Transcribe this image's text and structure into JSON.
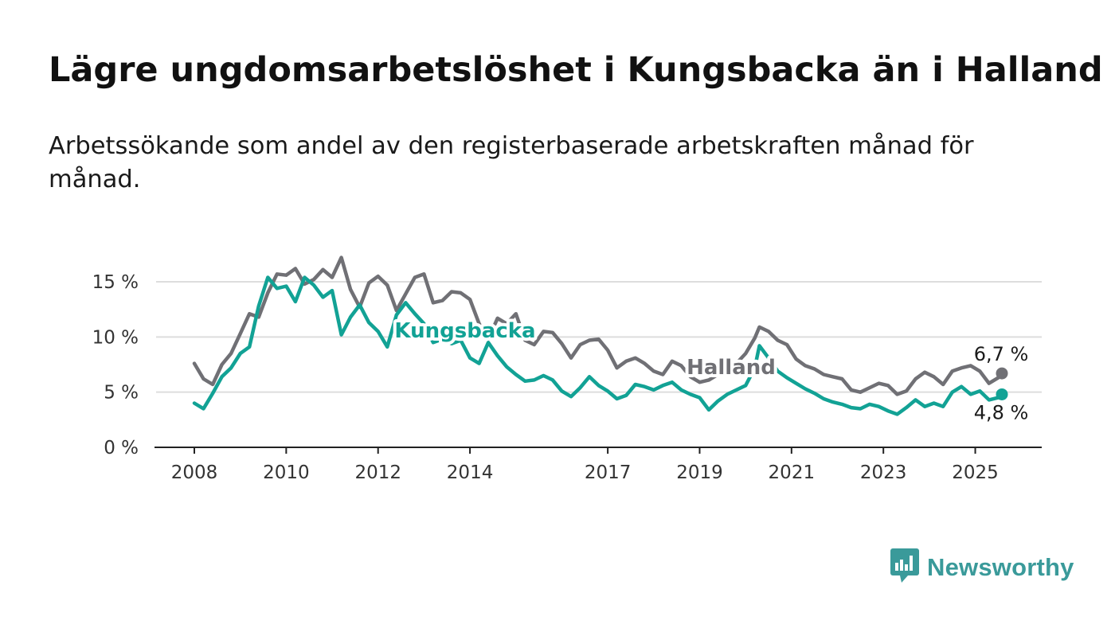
{
  "title": "Lägre ungdomsarbetslöshet i Kungsbacka än i Halland",
  "subtitle": "Arbetssökande som andel av den registerbaserade arbetskraften månad för månad.",
  "brand": {
    "name": "Newsworthy",
    "icon": "newsworthy-logo-icon",
    "color": "#3a9a9a"
  },
  "chart_data": {
    "type": "line",
    "title": "",
    "xlabel": "",
    "ylabel": "",
    "x_range": [
      2008.0,
      2025.58
    ],
    "ylim": [
      0,
      15
    ],
    "y_ticks": [
      {
        "value": 0,
        "label": "0 %"
      },
      {
        "value": 5,
        "label": "5 %"
      },
      {
        "value": 10,
        "label": "10 %"
      },
      {
        "value": 15,
        "label": "15 %"
      }
    ],
    "x_ticks": [
      {
        "value": 2008,
        "label": "2008"
      },
      {
        "value": 2010,
        "label": "2010"
      },
      {
        "value": 2012,
        "label": "2012"
      },
      {
        "value": 2014,
        "label": "2014"
      },
      {
        "value": 2017,
        "label": "2017"
      },
      {
        "value": 2019,
        "label": "2019"
      },
      {
        "value": 2021,
        "label": "2021"
      },
      {
        "value": 2023,
        "label": "2023"
      },
      {
        "value": 2025,
        "label": "2025"
      }
    ],
    "grid": true,
    "legend": "direct labels",
    "series": [
      {
        "name": "Halland",
        "color": "#707075",
        "end_label": "6,7 %",
        "points": [
          [
            2008.0,
            7.6
          ],
          [
            2008.2,
            6.2
          ],
          [
            2008.4,
            5.7
          ],
          [
            2008.6,
            7.5
          ],
          [
            2008.8,
            8.5
          ],
          [
            2009.0,
            10.3
          ],
          [
            2009.2,
            12.1
          ],
          [
            2009.4,
            11.8
          ],
          [
            2009.6,
            14.0
          ],
          [
            2009.8,
            15.7
          ],
          [
            2010.0,
            15.6
          ],
          [
            2010.2,
            16.2
          ],
          [
            2010.4,
            14.8
          ],
          [
            2010.6,
            15.2
          ],
          [
            2010.8,
            16.1
          ],
          [
            2011.0,
            15.4
          ],
          [
            2011.2,
            17.2
          ],
          [
            2011.4,
            14.3
          ],
          [
            2011.6,
            12.7
          ],
          [
            2011.8,
            14.9
          ],
          [
            2012.0,
            15.5
          ],
          [
            2012.2,
            14.7
          ],
          [
            2012.4,
            12.4
          ],
          [
            2012.6,
            13.9
          ],
          [
            2012.8,
            15.4
          ],
          [
            2013.0,
            15.7
          ],
          [
            2013.2,
            13.1
          ],
          [
            2013.4,
            13.3
          ],
          [
            2013.6,
            14.1
          ],
          [
            2013.8,
            14.0
          ],
          [
            2014.0,
            13.4
          ],
          [
            2014.2,
            11.2
          ],
          [
            2014.4,
            9.8
          ],
          [
            2014.6,
            11.7
          ],
          [
            2014.8,
            11.2
          ],
          [
            2015.0,
            12.1
          ],
          [
            2015.2,
            9.7
          ],
          [
            2015.4,
            9.3
          ],
          [
            2015.6,
            10.5
          ],
          [
            2015.8,
            10.4
          ],
          [
            2016.0,
            9.4
          ],
          [
            2016.2,
            8.1
          ],
          [
            2016.4,
            9.3
          ],
          [
            2016.6,
            9.7
          ],
          [
            2016.8,
            9.8
          ],
          [
            2017.0,
            8.8
          ],
          [
            2017.2,
            7.2
          ],
          [
            2017.4,
            7.8
          ],
          [
            2017.6,
            8.1
          ],
          [
            2017.8,
            7.6
          ],
          [
            2018.0,
            6.9
          ],
          [
            2018.2,
            6.6
          ],
          [
            2018.4,
            7.8
          ],
          [
            2018.6,
            7.4
          ],
          [
            2018.8,
            6.4
          ],
          [
            2019.0,
            5.9
          ],
          [
            2019.2,
            6.1
          ],
          [
            2019.4,
            6.6
          ],
          [
            2019.6,
            7.1
          ],
          [
            2019.8,
            7.6
          ],
          [
            2020.0,
            8.5
          ],
          [
            2020.2,
            9.9
          ],
          [
            2020.3,
            10.9
          ],
          [
            2020.5,
            10.5
          ],
          [
            2020.7,
            9.7
          ],
          [
            2020.9,
            9.3
          ],
          [
            2021.1,
            8.0
          ],
          [
            2021.3,
            7.4
          ],
          [
            2021.5,
            7.1
          ],
          [
            2021.7,
            6.6
          ],
          [
            2021.9,
            6.4
          ],
          [
            2022.1,
            6.2
          ],
          [
            2022.3,
            5.2
          ],
          [
            2022.5,
            5.0
          ],
          [
            2022.7,
            5.4
          ],
          [
            2022.9,
            5.8
          ],
          [
            2023.1,
            5.6
          ],
          [
            2023.3,
            4.8
          ],
          [
            2023.5,
            5.1
          ],
          [
            2023.7,
            6.2
          ],
          [
            2023.9,
            6.8
          ],
          [
            2024.1,
            6.4
          ],
          [
            2024.3,
            5.7
          ],
          [
            2024.5,
            6.9
          ],
          [
            2024.7,
            7.2
          ],
          [
            2024.9,
            7.4
          ],
          [
            2025.1,
            6.9
          ],
          [
            2025.3,
            5.8
          ],
          [
            2025.5,
            6.3
          ],
          [
            2025.58,
            6.7
          ]
        ]
      },
      {
        "name": "Kungsbacka",
        "color": "#12a295",
        "end_label": "4,8 %",
        "points": [
          [
            2008.0,
            4.0
          ],
          [
            2008.2,
            3.5
          ],
          [
            2008.4,
            4.9
          ],
          [
            2008.6,
            6.4
          ],
          [
            2008.8,
            7.2
          ],
          [
            2009.0,
            8.5
          ],
          [
            2009.2,
            9.1
          ],
          [
            2009.4,
            12.8
          ],
          [
            2009.6,
            15.4
          ],
          [
            2009.8,
            14.4
          ],
          [
            2010.0,
            14.6
          ],
          [
            2010.2,
            13.2
          ],
          [
            2010.4,
            15.4
          ],
          [
            2010.6,
            14.7
          ],
          [
            2010.8,
            13.6
          ],
          [
            2011.0,
            14.2
          ],
          [
            2011.2,
            10.2
          ],
          [
            2011.4,
            11.8
          ],
          [
            2011.6,
            12.9
          ],
          [
            2011.8,
            11.3
          ],
          [
            2012.0,
            10.5
          ],
          [
            2012.2,
            9.1
          ],
          [
            2012.4,
            12.0
          ],
          [
            2012.6,
            13.1
          ],
          [
            2012.8,
            12.1
          ],
          [
            2013.0,
            11.2
          ],
          [
            2013.2,
            9.5
          ],
          [
            2013.4,
            9.8
          ],
          [
            2013.6,
            9.4
          ],
          [
            2013.8,
            9.7
          ],
          [
            2014.0,
            8.1
          ],
          [
            2014.2,
            7.6
          ],
          [
            2014.4,
            9.5
          ],
          [
            2014.6,
            8.3
          ],
          [
            2014.8,
            7.3
          ],
          [
            2015.0,
            6.6
          ],
          [
            2015.2,
            6.0
          ],
          [
            2015.4,
            6.1
          ],
          [
            2015.6,
            6.5
          ],
          [
            2015.8,
            6.1
          ],
          [
            2016.0,
            5.1
          ],
          [
            2016.2,
            4.6
          ],
          [
            2016.4,
            5.4
          ],
          [
            2016.6,
            6.4
          ],
          [
            2016.8,
            5.6
          ],
          [
            2017.0,
            5.1
          ],
          [
            2017.2,
            4.4
          ],
          [
            2017.4,
            4.7
          ],
          [
            2017.6,
            5.7
          ],
          [
            2017.8,
            5.5
          ],
          [
            2018.0,
            5.2
          ],
          [
            2018.2,
            5.6
          ],
          [
            2018.4,
            5.9
          ],
          [
            2018.6,
            5.2
          ],
          [
            2018.8,
            4.8
          ],
          [
            2019.0,
            4.5
          ],
          [
            2019.2,
            3.4
          ],
          [
            2019.4,
            4.2
          ],
          [
            2019.6,
            4.8
          ],
          [
            2019.8,
            5.2
          ],
          [
            2020.0,
            5.6
          ],
          [
            2020.2,
            7.2
          ],
          [
            2020.3,
            9.2
          ],
          [
            2020.5,
            8.1
          ],
          [
            2020.7,
            6.9
          ],
          [
            2020.9,
            6.3
          ],
          [
            2021.1,
            5.8
          ],
          [
            2021.3,
            5.3
          ],
          [
            2021.5,
            4.9
          ],
          [
            2021.7,
            4.4
          ],
          [
            2021.9,
            4.1
          ],
          [
            2022.1,
            3.9
          ],
          [
            2022.3,
            3.6
          ],
          [
            2022.5,
            3.5
          ],
          [
            2022.7,
            3.9
          ],
          [
            2022.9,
            3.7
          ],
          [
            2023.1,
            3.3
          ],
          [
            2023.3,
            3.0
          ],
          [
            2023.5,
            3.6
          ],
          [
            2023.7,
            4.3
          ],
          [
            2023.9,
            3.7
          ],
          [
            2024.1,
            4.0
          ],
          [
            2024.3,
            3.7
          ],
          [
            2024.5,
            5.0
          ],
          [
            2024.7,
            5.5
          ],
          [
            2024.9,
            4.8
          ],
          [
            2025.1,
            5.1
          ],
          [
            2025.3,
            4.3
          ],
          [
            2025.5,
            4.5
          ],
          [
            2025.58,
            4.8
          ]
        ]
      }
    ]
  }
}
